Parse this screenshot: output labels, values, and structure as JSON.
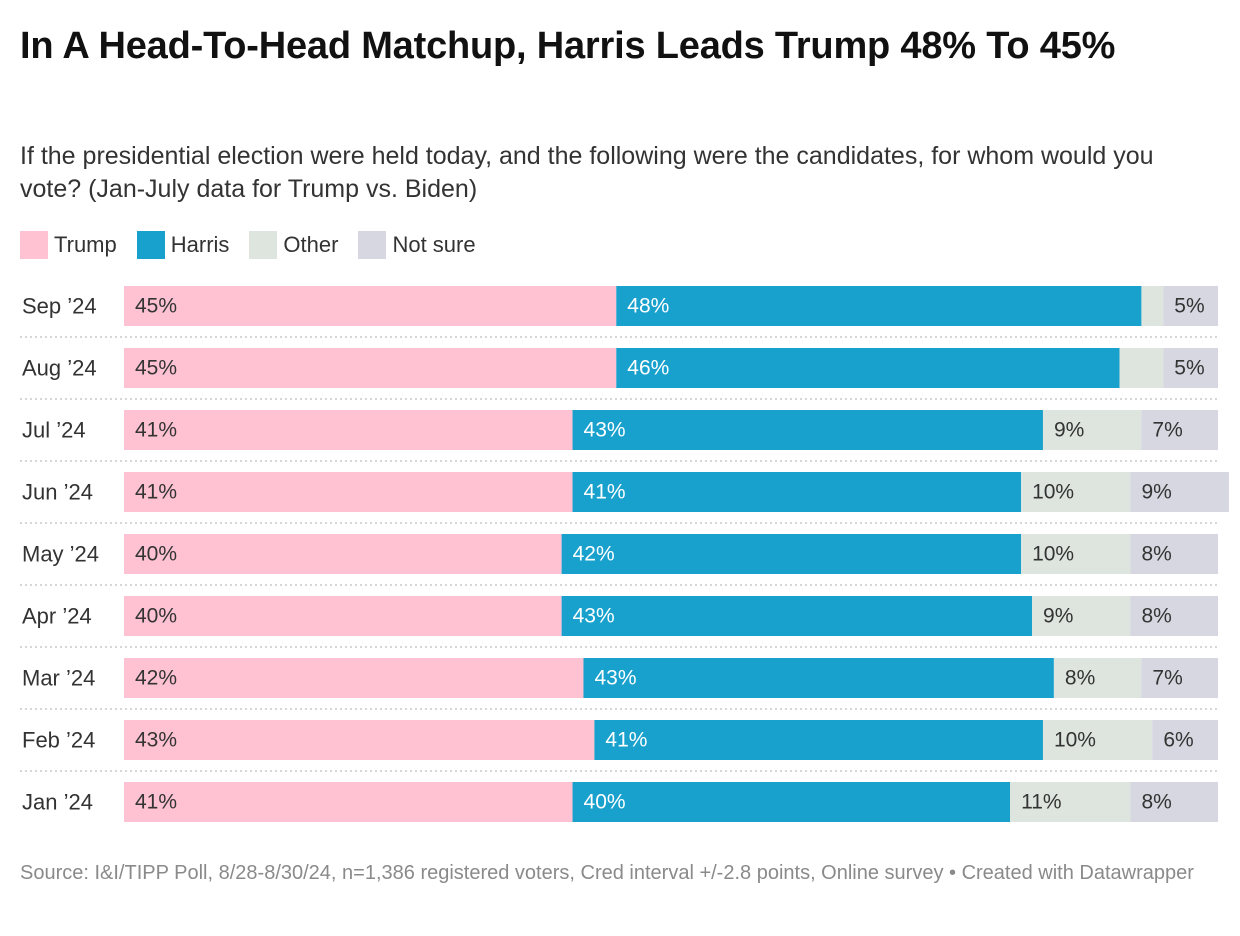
{
  "title": "In A Head-To-Head Matchup, Harris Leads Trump 48% To 45%",
  "subtitle": "If the presidential election were held today, and the following were the candidates, for whom would you vote? (Jan-July data for Trump vs. Biden)",
  "source": "Source: I&I/TIPP Poll, 8/28-8/30/24, n=1,386 registered voters, Cred interval +/-2.8 points, Online survey • Created with Datawrapper",
  "chart_data": {
    "type": "bar",
    "orientation": "horizontal",
    "stacked": true,
    "title": "In A Head-To-Head Matchup, Harris Leads Trump 48% To 45%",
    "subtitle": "If the presidential election were held today, and the following were the candidates, for whom would you vote? (Jan-July data for Trump vs. Biden)",
    "xlim": [
      0,
      100
    ],
    "value_suffix": "%",
    "legend_position": "top-left",
    "grid": false,
    "categories": [
      "Sep ’24",
      "Aug ’24",
      "Jul ’24",
      "Jun ’24",
      "May ’24",
      "Apr ’24",
      "Mar ’24",
      "Feb ’24",
      "Jan ’24"
    ],
    "series": [
      {
        "name": "Trump",
        "color": "#fec2d3",
        "values": [
          45,
          45,
          41,
          41,
          40,
          40,
          42,
          43,
          41
        ]
      },
      {
        "name": "Harris",
        "color": "#18a1cd",
        "values": [
          48,
          46,
          43,
          41,
          42,
          43,
          43,
          41,
          40
        ]
      },
      {
        "name": "Other",
        "color": "#dde5de",
        "values": [
          2,
          4,
          9,
          10,
          10,
          9,
          8,
          10,
          11
        ]
      },
      {
        "name": "Not sure",
        "color": "#d6d7e1",
        "values": [
          5,
          5,
          7,
          9,
          8,
          8,
          7,
          6,
          8
        ]
      }
    ],
    "label_hidden": [
      [
        false,
        false,
        true,
        false
      ],
      [
        false,
        false,
        true,
        false
      ],
      [
        false,
        false,
        false,
        false
      ],
      [
        false,
        false,
        false,
        false
      ],
      [
        false,
        false,
        false,
        false
      ],
      [
        false,
        false,
        false,
        false
      ],
      [
        false,
        false,
        false,
        false
      ],
      [
        false,
        false,
        false,
        false
      ],
      [
        false,
        false,
        false,
        false
      ]
    ]
  }
}
